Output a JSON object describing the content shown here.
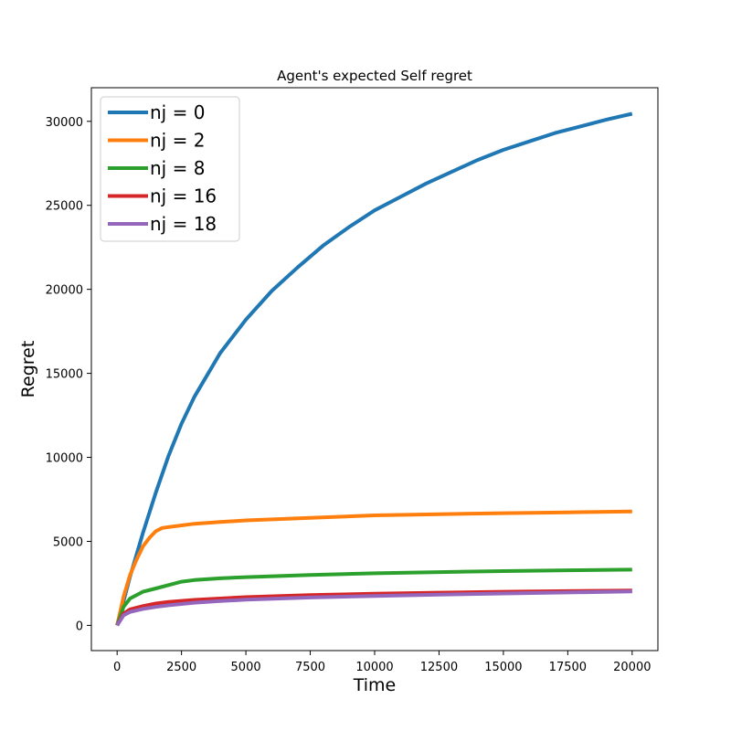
{
  "chart_data": {
    "type": "line",
    "title": "Agent's expected Self regret",
    "xlabel": "Time",
    "ylabel": "Regret",
    "xlim": [
      -1000,
      21000
    ],
    "ylim": [
      -1500,
      32000
    ],
    "xticks": [
      0,
      2500,
      5000,
      7500,
      10000,
      12500,
      15000,
      17500,
      20000
    ],
    "yticks": [
      0,
      5000,
      10000,
      15000,
      20000,
      25000,
      30000
    ],
    "grid": false,
    "legend_position": "top-left",
    "series": [
      {
        "name": "nj = 0",
        "color": "#1f77b4",
        "x": [
          0,
          500,
          1000,
          1500,
          2000,
          2500,
          3000,
          4000,
          5000,
          6000,
          7000,
          8000,
          9000,
          10000,
          11000,
          12000,
          13000,
          14000,
          15000,
          16000,
          17000,
          18000,
          19000,
          20000
        ],
        "y": [
          0,
          2900,
          5500,
          7900,
          10100,
          12000,
          13600,
          16200,
          18200,
          19900,
          21300,
          22600,
          23700,
          24700,
          25500,
          26300,
          27000,
          27700,
          28300,
          28800,
          29300,
          29700,
          30100,
          30450
        ]
      },
      {
        "name": "nj = 2",
        "color": "#ff7f0e",
        "x": [
          0,
          250,
          500,
          750,
          1000,
          1250,
          1500,
          1750,
          2000,
          2500,
          3000,
          4000,
          5000,
          7500,
          10000,
          12500,
          15000,
          17500,
          20000
        ],
        "y": [
          0,
          1700,
          3000,
          3900,
          4700,
          5200,
          5600,
          5800,
          5850,
          5950,
          6050,
          6150,
          6250,
          6400,
          6550,
          6620,
          6680,
          6730,
          6780
        ]
      },
      {
        "name": "nj = 8",
        "color": "#2ca02c",
        "x": [
          0,
          250,
          500,
          1000,
          1500,
          2000,
          2500,
          3000,
          4000,
          5000,
          7500,
          10000,
          12500,
          15000,
          17500,
          20000
        ],
        "y": [
          0,
          1100,
          1600,
          2000,
          2200,
          2400,
          2600,
          2700,
          2800,
          2870,
          3000,
          3100,
          3170,
          3230,
          3280,
          3320
        ]
      },
      {
        "name": "nj = 16",
        "color": "#d62728",
        "x": [
          0,
          250,
          500,
          1000,
          1500,
          2000,
          3000,
          4000,
          5000,
          7500,
          10000,
          12500,
          15000,
          17500,
          20000
        ],
        "y": [
          0,
          700,
          950,
          1150,
          1300,
          1400,
          1520,
          1600,
          1680,
          1800,
          1890,
          1950,
          2000,
          2040,
          2080
        ]
      },
      {
        "name": "nj = 18",
        "color": "#9467bd",
        "x": [
          0,
          250,
          500,
          1000,
          1500,
          2000,
          3000,
          4000,
          5000,
          7500,
          10000,
          12500,
          15000,
          17500,
          20000
        ],
        "y": [
          0,
          600,
          800,
          980,
          1100,
          1200,
          1350,
          1450,
          1530,
          1660,
          1750,
          1830,
          1900,
          1960,
          2020
        ]
      }
    ]
  }
}
